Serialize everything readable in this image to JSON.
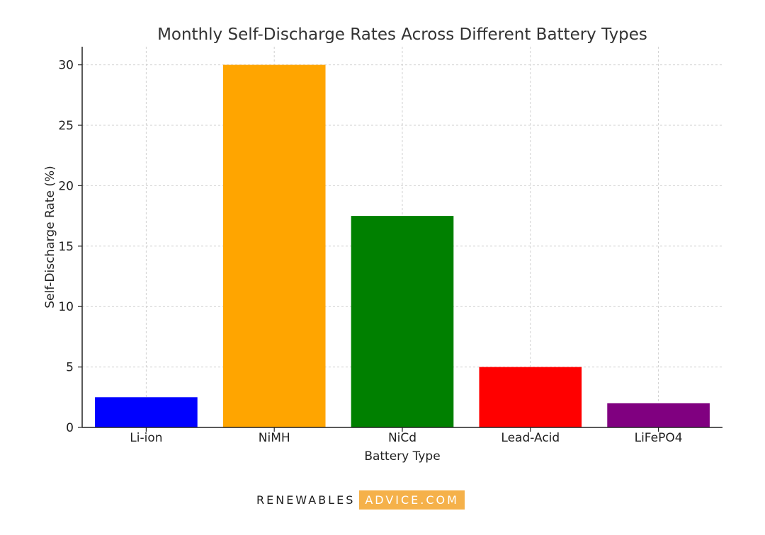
{
  "chart_data": {
    "type": "bar",
    "title": "Monthly Self-Discharge Rates Across Different Battery Types",
    "xlabel": "Battery Type",
    "ylabel": "Self-Discharge Rate (%)",
    "categories": [
      "Li-ion",
      "NiMH",
      "NiCd",
      "Lead-Acid",
      "LiFePO4"
    ],
    "values": [
      2.5,
      30,
      17.5,
      5,
      2
    ],
    "colors": [
      "#0000ff",
      "#ffa500",
      "#008000",
      "#ff0000",
      "#800080"
    ],
    "ylim": [
      0,
      31.5
    ],
    "yticks": [
      0,
      5,
      10,
      15,
      20,
      25,
      30
    ],
    "grid": true
  },
  "watermark": {
    "part_a": "RENEWABLES",
    "part_b": "ADVICE.COM"
  }
}
